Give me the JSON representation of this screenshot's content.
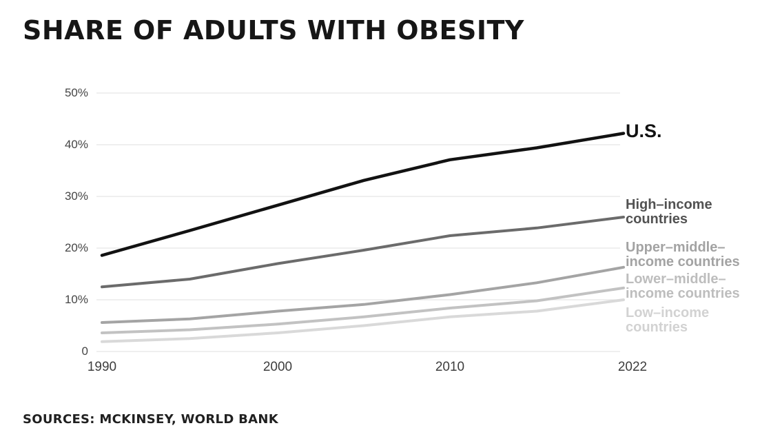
{
  "page": {
    "background": "#ffffff"
  },
  "chart_data": {
    "type": "line",
    "title": "SHARE OF ADULTS WITH OBESITY",
    "footnote": "SOURCES: MCKINSEY, WORLD BANK",
    "xlabel": "",
    "ylabel": "",
    "ylim": [
      0,
      50
    ],
    "grid": "horizontal",
    "gridline_color": "#e5e5e5",
    "legend_position": "right-edge-direct-labels",
    "x": [
      1990,
      1995,
      2000,
      2005,
      2010,
      2016,
      2022
    ],
    "x_tick_labels": [
      "1990",
      "2000",
      "2010",
      "2022"
    ],
    "x_tick_years": [
      1990,
      2000,
      2010,
      2022
    ],
    "y_tick_labels": [
      "50%",
      "40%",
      "30%",
      "20%",
      "10%",
      "0"
    ],
    "y_tick_values": [
      50,
      40,
      30,
      20,
      10,
      0
    ],
    "series": [
      {
        "name": "U.S.",
        "label": "U.S.",
        "color": "#121212",
        "label_color": "#121212",
        "stroke_width": 4.5,
        "values": [
          18.6,
          23.4,
          28.3,
          33.1,
          37.1,
          39.4,
          42.2
        ]
      },
      {
        "name": "High-income countries",
        "label": "High–income\ncountries",
        "color": "#6b6b6b",
        "label_color": "#525252",
        "stroke_width": 4,
        "values": [
          12.5,
          14.0,
          17.0,
          19.6,
          22.4,
          23.9,
          26.0
        ]
      },
      {
        "name": "Upper-middle-income countries",
        "label": "Upper–middle–\nincome countries",
        "color": "#a4a4a4",
        "label_color": "#a3a3a3",
        "stroke_width": 4,
        "values": [
          5.6,
          6.3,
          7.8,
          9.1,
          11.0,
          13.3,
          16.3
        ]
      },
      {
        "name": "Lower-middle-income countries",
        "label": "Lower–middle–\nincome countries",
        "color": "#c2c2c2",
        "label_color": "#bdbdbd",
        "stroke_width": 4,
        "values": [
          3.6,
          4.2,
          5.3,
          6.7,
          8.4,
          9.8,
          12.3
        ]
      },
      {
        "name": "Low-income countries",
        "label": "Low–income\ncountries",
        "color": "#d9d9d9",
        "label_color": "#d2d2d2",
        "stroke_width": 4,
        "values": [
          1.9,
          2.5,
          3.6,
          5.0,
          6.7,
          7.8,
          10.0
        ]
      }
    ]
  }
}
